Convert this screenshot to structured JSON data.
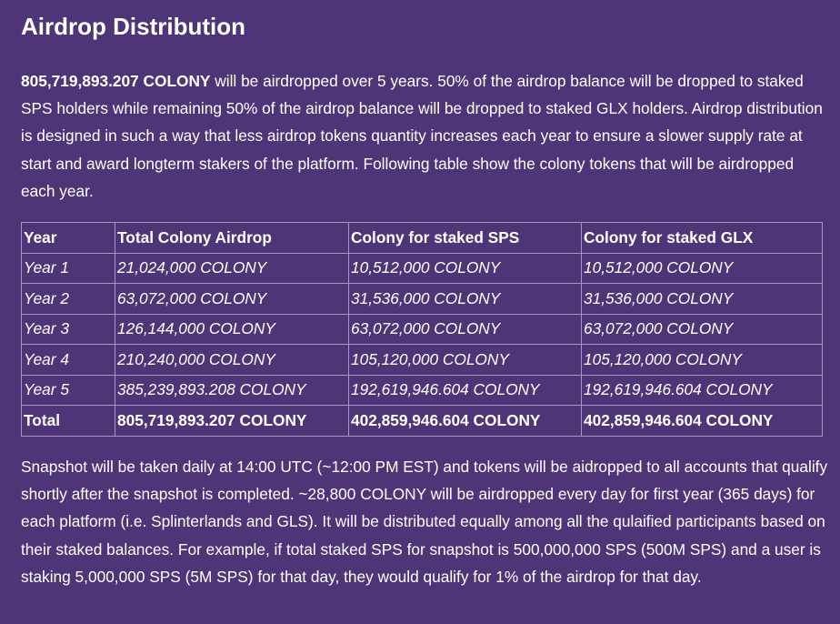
{
  "title": "Airdrop Distribution",
  "intro": {
    "amount": "805,719,893.207 COLONY",
    "text": " will be airdropped over 5 years. 50% of the airdrop balance will be dropped to staked SPS holders while remaining 50% of the airdrop balance will be dropped to staked GLX holders. Airdrop distribution is designed in such a way that less airdrop tokens quantity increases each year to ensure a slower supply rate at start and award longterm stakers of the platform. Following table show the colony tokens that will be airdropped each year."
  },
  "table": {
    "headers": [
      "Year",
      "Total Colony Airdrop",
      "Colony for staked SPS",
      "Colony for staked GLX"
    ],
    "rows": [
      [
        "Year 1",
        "21,024,000 COLONY",
        "10,512,000 COLONY",
        "10,512,000 COLONY"
      ],
      [
        "Year 2",
        "63,072,000 COLONY",
        "31,536,000 COLONY",
        "31,536,000 COLONY"
      ],
      [
        "Year 3",
        "126,144,000 COLONY",
        "63,072,000 COLONY",
        "63,072,000 COLONY"
      ],
      [
        "Year 4",
        "210,240,000 COLONY",
        "105,120,000 COLONY",
        "105,120,000 COLONY"
      ],
      [
        "Year 5",
        "385,239,893.208 COLONY",
        "192,619,946.604 COLONY",
        "192,619,946.604 COLONY"
      ]
    ],
    "total": [
      "Total",
      "805,719,893.207 COLONY",
      "402,859,946.604 COLONY",
      "402,859,946.604 COLONY"
    ]
  },
  "outro": "Snapshot will be taken daily at 14:00 UTC (~12:00 PM EST) and tokens will be aidropped to all accounts that qualify shortly after the snapshot is completed. ~28,800 COLONY will be airdropped every day for first year (365 days) for each platform (i.e. Splinterlands and GLS). It will be distributed equally among all the qulaified participants based on their staked balances. For example, if total staked SPS for snapshot is 500,000,000 SPS (500M SPS) and a user is staking 5,000,000 SPS (5M SPS) for that day, they would qualify for 1% of the airdrop for that day.",
  "colors": {
    "background": "#4e3577",
    "text": "#ffffff",
    "table_border": "#a997c3"
  }
}
